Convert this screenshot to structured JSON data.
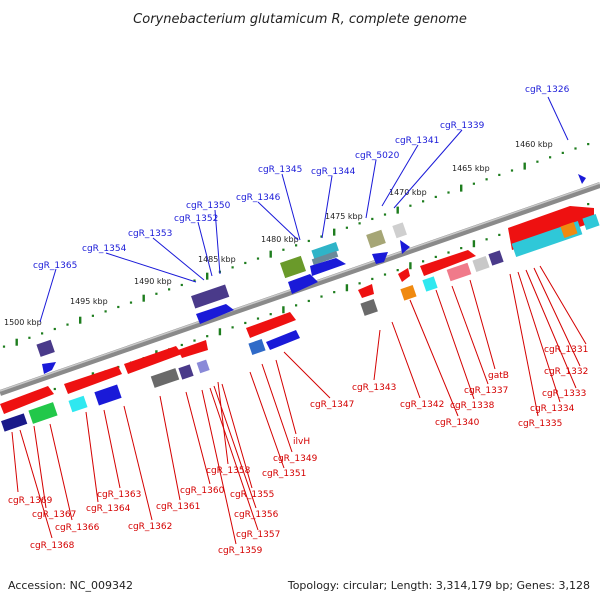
{
  "title": "Corynebacterium glutamicum R, complete genome",
  "footer": {
    "accession": "Accession: NC_009342",
    "topology": "Topology: circular; Length: 3,314,179 bp; Genes: 3,128"
  },
  "colors": {
    "backbone": "#8a8a8a",
    "scale_tick": "#1e7d1e",
    "forward_gene": "#1a1ad8",
    "reverse_gene": "#ee1111",
    "forward_label": "#1a1ad8",
    "reverse_label": "#d40000"
  },
  "scale_labels": [
    "1460 kbp",
    "1465 kbp",
    "1470 kbp",
    "1475 kbp",
    "1480 kbp",
    "1485 kbp",
    "1490 kbp",
    "1495 kbp",
    "1500 kbp"
  ],
  "forward_labels": [
    "cgR_1326",
    "cgR_1339",
    "cgR_1341",
    "cgR_5020",
    "cgR_1344",
    "cgR_1345",
    "cgR_1346",
    "cgR_1350",
    "cgR_1352",
    "cgR_1353",
    "cgR_1354",
    "cgR_1365"
  ],
  "reverse_labels": [
    "cgR_1331",
    "cgR_1332",
    "cgR_1333",
    "cgR_1334",
    "cgR_1335",
    "gatB",
    "cgR_1337",
    "cgR_1338",
    "cgR_1340",
    "cgR_1342",
    "cgR_1343",
    "cgR_1347",
    "ilvH",
    "cgR_1349",
    "cgR_1351",
    "cgR_1358",
    "cgR_1355",
    "cgR_1356",
    "cgR_1357",
    "cgR_1359",
    "cgR_1360",
    "cgR_1361",
    "cgR_1362",
    "cgR_1363",
    "cgR_1364",
    "cgR_1366",
    "cgR_1367",
    "cgR_1368",
    "cgR_1369"
  ]
}
